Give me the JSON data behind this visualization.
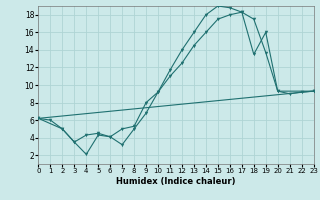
{
  "xlabel": "Humidex (Indice chaleur)",
  "bg_color": "#cce9e9",
  "grid_color": "#afd4d4",
  "line_color": "#1f7070",
  "xlim": [
    0,
    23
  ],
  "ylim": [
    1,
    19
  ],
  "yticks": [
    2,
    4,
    6,
    8,
    10,
    12,
    14,
    16,
    18
  ],
  "xticks": [
    0,
    1,
    2,
    3,
    4,
    5,
    6,
    7,
    8,
    9,
    10,
    11,
    12,
    13,
    14,
    15,
    16,
    17,
    18,
    19,
    20,
    21,
    22,
    23
  ],
  "line1_x": [
    0,
    1,
    2,
    3,
    4,
    5,
    6,
    7,
    8,
    9,
    10,
    11,
    12,
    13,
    14,
    15,
    16,
    17,
    18,
    19,
    20,
    21,
    22,
    23
  ],
  "line1_y": [
    6.2,
    6.0,
    5.0,
    3.5,
    2.1,
    4.3,
    4.1,
    3.2,
    5.0,
    6.8,
    9.2,
    11.7,
    14.0,
    16.0,
    18.0,
    19.0,
    18.8,
    18.3,
    17.5,
    13.7,
    9.3,
    9.0,
    9.2,
    9.3
  ],
  "line2_x": [
    0,
    2,
    3,
    4,
    5,
    6,
    7,
    8,
    9,
    10,
    11,
    12,
    13,
    14,
    15,
    16,
    17,
    18,
    19,
    20,
    23
  ],
  "line2_y": [
    6.2,
    5.0,
    3.5,
    4.3,
    4.5,
    4.1,
    5.0,
    5.3,
    8.0,
    9.2,
    11.0,
    12.5,
    14.5,
    16.0,
    17.5,
    18.0,
    18.3,
    13.5,
    16.0,
    9.3,
    9.3
  ],
  "line3_x": [
    0,
    23
  ],
  "line3_y": [
    6.2,
    9.3
  ]
}
